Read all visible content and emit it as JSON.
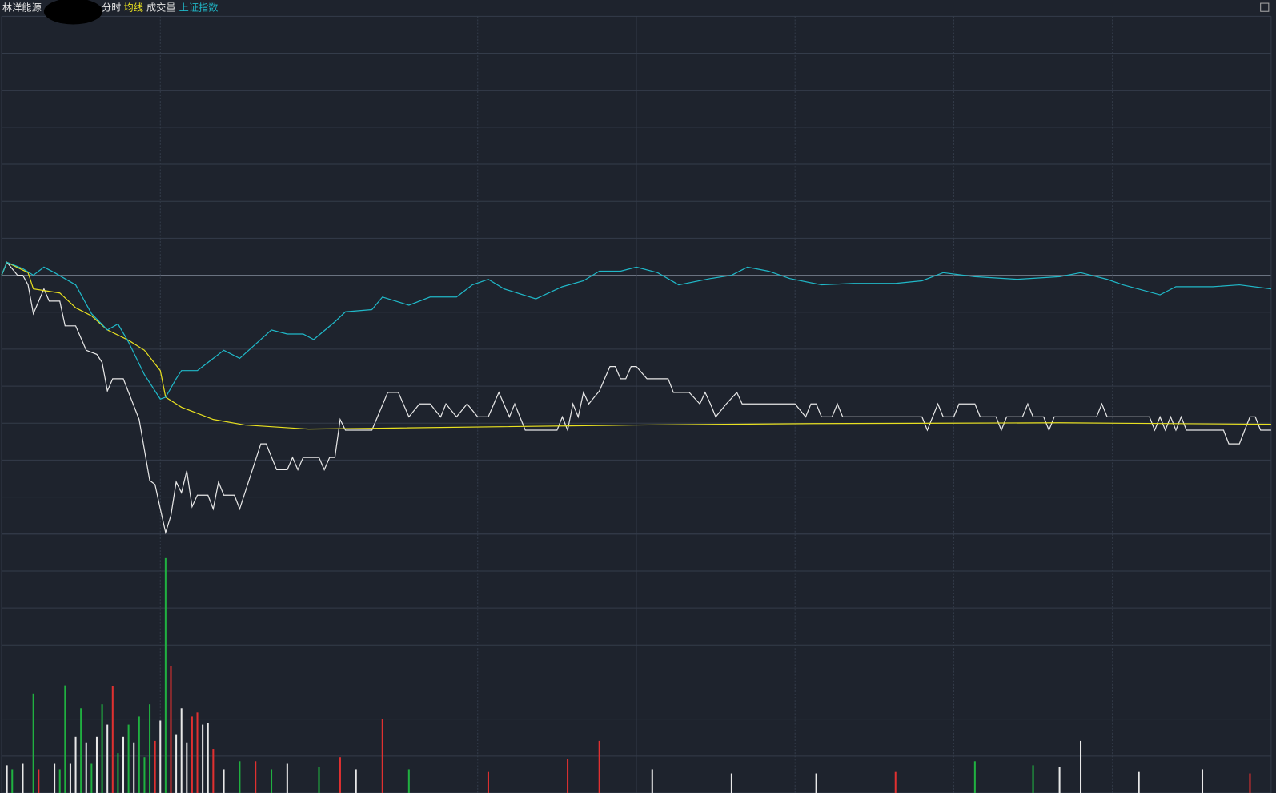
{
  "chart_data": [
    {
      "type": "line",
      "title": "林洋能源",
      "xlim": [
        0,
        240
      ],
      "xticks": [
        0,
        30,
        60,
        90,
        120,
        150,
        180,
        210,
        240
      ],
      "ylim": [
        -7,
        7
      ],
      "yticks": [
        -7,
        -6,
        -5,
        -4,
        -3,
        -2,
        -1,
        0,
        1,
        2,
        3,
        4,
        5,
        6,
        7
      ],
      "grid": true,
      "series": [
        {
          "name": "分时",
          "color": "#e8e8e8",
          "x": [
            0,
            1,
            3,
            4,
            5,
            6,
            8,
            9,
            11,
            12,
            14,
            16,
            18,
            19,
            20,
            21,
            23,
            26,
            28,
            29,
            30,
            31,
            32,
            33,
            34,
            35,
            36,
            37,
            39,
            40,
            41,
            42,
            44,
            45,
            49,
            50,
            52,
            54,
            55,
            56,
            57,
            60,
            61,
            62,
            63,
            64,
            65,
            70,
            73,
            75,
            77,
            79,
            81,
            83,
            84,
            86,
            88,
            90,
            92,
            94,
            96,
            97,
            99,
            105,
            106,
            107,
            108,
            109,
            110,
            111,
            113,
            115,
            116,
            117,
            118,
            119,
            120,
            122,
            126,
            127,
            130,
            132,
            133,
            134,
            135,
            137,
            139,
            140,
            150,
            152,
            153,
            154,
            155,
            157,
            158,
            159,
            174,
            175,
            177,
            178,
            180,
            181,
            184,
            185,
            188,
            189,
            190,
            193,
            194,
            195,
            197,
            198,
            199,
            207,
            208,
            209,
            217,
            218,
            219,
            220,
            221,
            222,
            223,
            224,
            231,
            232,
            234,
            235,
            236,
            237,
            238,
            240
          ],
          "values": [
            0,
            0.35,
            0,
            0,
            -0.26,
            -1.04,
            -0.37,
            -0.7,
            -0.7,
            -1.37,
            -1.37,
            -2.03,
            -2.14,
            -2.36,
            -3.13,
            -2.8,
            -2.8,
            -3.9,
            -5.55,
            -5.66,
            -6.32,
            -6.96,
            -6.5,
            -5.59,
            -5.88,
            -5.29,
            -6.26,
            -5.95,
            -5.95,
            -6.32,
            -5.59,
            -5.95,
            -5.95,
            -6.32,
            -4.56,
            -4.56,
            -5.26,
            -5.26,
            -4.93,
            -5.26,
            -4.93,
            -4.93,
            -5.26,
            -4.93,
            -4.93,
            -3.9,
            -4.19,
            -4.19,
            -3.17,
            -3.17,
            -3.83,
            -3.48,
            -3.48,
            -3.83,
            -3.48,
            -3.83,
            -3.48,
            -3.83,
            -3.83,
            -3.17,
            -3.83,
            -3.48,
            -4.19,
            -4.19,
            -3.83,
            -4.19,
            -3.48,
            -3.83,
            -3.17,
            -3.48,
            -3.13,
            -2.47,
            -2.47,
            -2.8,
            -2.8,
            -2.47,
            -2.47,
            -2.8,
            -2.8,
            -3.17,
            -3.17,
            -3.48,
            -3.17,
            -3.48,
            -3.83,
            -3.48,
            -3.17,
            -3.48,
            -3.48,
            -3.83,
            -3.48,
            -3.48,
            -3.83,
            -3.83,
            -3.48,
            -3.83,
            -3.83,
            -4.19,
            -3.48,
            -3.83,
            -3.83,
            -3.48,
            -3.48,
            -3.83,
            -3.83,
            -4.19,
            -3.83,
            -3.83,
            -3.48,
            -3.83,
            -3.83,
            -4.19,
            -3.83,
            -3.83,
            -3.48,
            -3.83,
            -3.83,
            -4.19,
            -3.83,
            -4.19,
            -3.83,
            -4.19,
            -3.83,
            -4.19,
            -4.19,
            -4.56,
            -4.56,
            -4.19,
            -3.83,
            -3.83,
            -4.19,
            -4.19
          ]
        },
        {
          "name": "均线",
          "color": "#e8e020",
          "x": [
            0,
            1,
            5,
            6,
            11,
            14,
            17,
            20,
            24,
            27,
            30,
            31,
            34,
            40,
            46,
            58,
            70,
            120,
            154,
            200,
            240
          ],
          "values": [
            0,
            0.35,
            0.07,
            -0.37,
            -0.48,
            -0.88,
            -1.1,
            -1.48,
            -1.76,
            -2.03,
            -2.58,
            -3.3,
            -3.57,
            -3.9,
            -4.05,
            -4.16,
            -4.14,
            -4.05,
            -4.01,
            -3.99,
            -4.03
          ]
        },
        {
          "name": "上证指数",
          "color": "#20b8c8",
          "x": [
            0,
            1,
            4,
            6,
            8,
            10,
            14,
            17,
            20,
            22,
            24,
            27,
            30,
            31,
            33,
            34,
            37,
            42,
            45,
            51,
            54,
            57,
            59,
            63,
            65,
            70,
            72,
            77,
            81,
            86,
            89,
            92,
            95,
            101,
            106,
            110,
            113,
            117,
            120,
            124,
            128,
            134,
            138,
            141,
            145,
            149,
            155,
            161,
            169,
            174,
            178,
            184,
            192,
            200,
            204,
            209,
            212,
            219,
            222,
            229,
            234,
            240
          ],
          "values": [
            0,
            0.35,
            0.18,
            0,
            0.22,
            0.07,
            -0.26,
            -1.04,
            -1.48,
            -1.32,
            -1.81,
            -2.69,
            -3.35,
            -3.3,
            -2.8,
            -2.58,
            -2.58,
            -2.03,
            -2.25,
            -1.48,
            -1.59,
            -1.59,
            -1.74,
            -1.26,
            -0.99,
            -0.93,
            -0.59,
            -0.81,
            -0.59,
            -0.59,
            -0.26,
            -0.11,
            -0.37,
            -0.64,
            -0.31,
            -0.15,
            0.11,
            0.11,
            0.22,
            0.07,
            -0.26,
            -0.09,
            0,
            0.22,
            0.11,
            -0.09,
            -0.26,
            -0.22,
            -0.22,
            -0.15,
            0.07,
            -0.04,
            -0.11,
            -0.04,
            0.07,
            -0.11,
            -0.26,
            -0.53,
            -0.31,
            -0.31,
            -0.26,
            -0.37
          ]
        }
      ]
    },
    {
      "type": "bar",
      "title": "成交量",
      "xlim": [
        0,
        240
      ],
      "xticks": [
        0,
        30,
        60,
        90,
        120,
        150,
        180,
        210,
        240
      ],
      "ylim": [
        0,
        7
      ],
      "yticks": [
        0,
        1,
        2,
        3,
        4,
        5,
        6,
        7
      ],
      "grid": true,
      "x": [
        1,
        2,
        4,
        6,
        7,
        10,
        11,
        12,
        13,
        14,
        15,
        16,
        17,
        18,
        19,
        20,
        21,
        22,
        23,
        24,
        25,
        26,
        27,
        28,
        29,
        30,
        31,
        32,
        33,
        34,
        35,
        36,
        37,
        38,
        39,
        40,
        42,
        45,
        48,
        51,
        54,
        60,
        64,
        67,
        72,
        77,
        92,
        107,
        113,
        123,
        138,
        154,
        169,
        184,
        195,
        200,
        204,
        215,
        227,
        236
      ],
      "values": [
        0.75,
        0.64,
        0.79,
        2.69,
        0.64,
        0.79,
        0.64,
        2.91,
        0.79,
        1.52,
        2.29,
        1.37,
        0.79,
        1.52,
        2.4,
        1.85,
        2.89,
        1.08,
        1.52,
        1.85,
        1.37,
        2.07,
        0.97,
        2.4,
        1.41,
        1.96,
        6.37,
        3.44,
        1.59,
        2.29,
        1.37,
        2.07,
        2.18,
        1.85,
        1.89,
        1.19,
        0.64,
        0.86,
        0.86,
        0.64,
        0.79,
        0.7,
        0.97,
        0.64,
        2,
        0.64,
        0.57,
        0.93,
        1.41,
        0.64,
        0.53,
        0.53,
        0.57,
        0.86,
        0.75,
        0.7,
        1.41,
        0.57,
        0.64,
        0.53
      ],
      "colors": [
        "#e8e8e8",
        "#20b040",
        "#e8e8e8",
        "#20b040",
        "#e03030",
        "#e8e8e8",
        "#20b040",
        "#20b040",
        "#e8e8e8",
        "#e8e8e8",
        "#20b040",
        "#e8e8e8",
        "#20b040",
        "#e8e8e8",
        "#20b040",
        "#e8e8e8",
        "#e03030",
        "#20b040",
        "#e8e8e8",
        "#20b040",
        "#e8e8e8",
        "#20b040",
        "#20b040",
        "#20b040",
        "#e03030",
        "#e8e8e8",
        "#20b040",
        "#e03030",
        "#e8e8e8",
        "#e8e8e8",
        "#e8e8e8",
        "#e03030",
        "#e03030",
        "#e8e8e8",
        "#e8e8e8",
        "#e03030",
        "#e8e8e8",
        "#20b040",
        "#e03030",
        "#20b040",
        "#e8e8e8",
        "#20b040",
        "#e03030",
        "#e8e8e8",
        "#e03030",
        "#20b040",
        "#e03030",
        "#e03030",
        "#e03030",
        "#e8e8e8",
        "#e8e8e8",
        "#e8e8e8",
        "#e03030",
        "#20b040",
        "#20b040",
        "#e8e8e8",
        "#e8e8e8",
        "#e8e8e8",
        "#e8e8e8",
        "#e03030"
      ]
    }
  ]
}
